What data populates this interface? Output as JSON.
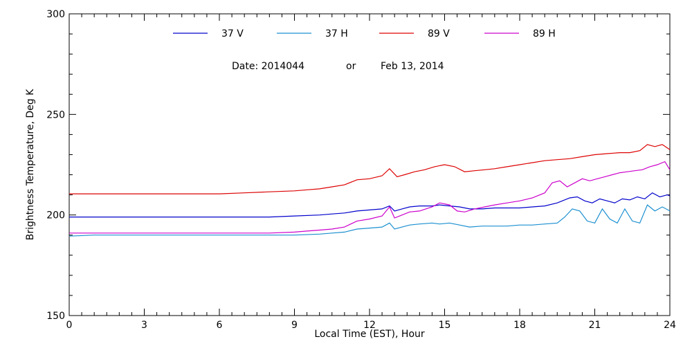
{
  "chart_data": {
    "type": "line",
    "xlabel": "Local Time (EST), Hour",
    "ylabel": "Brightness Temperature, Deg K",
    "xlim": [
      0,
      24
    ],
    "ylim": [
      150,
      300
    ],
    "xticks": [
      0,
      3,
      6,
      9,
      12,
      15,
      18,
      21,
      24
    ],
    "yticks": [
      150,
      200,
      250,
      300
    ],
    "grid": false,
    "legend_position": "top",
    "annotation": {
      "date_label": "Date: 2014044",
      "or_label": "or",
      "date_text": "Feb 13, 2014"
    },
    "series": [
      {
        "name": "37 V",
        "color": "#0000cc",
        "x": [
          0,
          1,
          2,
          3,
          4,
          5,
          6,
          7,
          8,
          9,
          10,
          10.5,
          11,
          11.5,
          12,
          12.5,
          12.8,
          13.0,
          13.3,
          13.6,
          14,
          14.5,
          14.8,
          15.2,
          15.6,
          16,
          16.5,
          17,
          17.5,
          18,
          18.5,
          19,
          19.5,
          20,
          20.3,
          20.6,
          20.9,
          21.2,
          21.5,
          21.8,
          22.1,
          22.4,
          22.7,
          23.0,
          23.3,
          23.6,
          23.9,
          24
        ],
        "values": [
          199,
          199,
          199,
          199,
          199,
          199,
          199,
          199,
          199,
          199.5,
          200,
          200.5,
          201,
          202,
          202.5,
          203,
          204.5,
          202,
          203,
          204,
          204.5,
          204.5,
          205,
          204.5,
          204,
          203,
          203,
          203.5,
          203.5,
          203.5,
          204,
          204.5,
          206,
          208.5,
          209,
          207,
          206,
          208,
          207,
          206,
          208,
          207.5,
          209,
          208,
          211,
          209,
          210,
          209.5
        ]
      },
      {
        "name": "37 H",
        "color": "#1a8fd0",
        "x": [
          0,
          1,
          2,
          3,
          4,
          5,
          6,
          7,
          8,
          9,
          10,
          10.5,
          11,
          11.5,
          12,
          12.5,
          12.8,
          13.0,
          13.3,
          13.6,
          14,
          14.5,
          14.8,
          15.2,
          15.6,
          16,
          16.5,
          17,
          17.5,
          18,
          18.5,
          19,
          19.5,
          19.8,
          20.1,
          20.4,
          20.7,
          21.0,
          21.3,
          21.6,
          21.9,
          22.2,
          22.5,
          22.8,
          23.1,
          23.4,
          23.7,
          24
        ],
        "values": [
          189.5,
          190,
          190,
          190,
          190,
          190,
          190,
          190,
          190,
          190,
          190.5,
          191,
          191.5,
          193,
          193.5,
          194,
          196,
          193,
          194,
          195,
          195.5,
          196,
          195.5,
          196,
          195,
          194,
          194.5,
          194.5,
          194.5,
          195,
          195,
          195.5,
          196,
          199,
          203,
          202,
          197,
          196,
          203,
          198,
          196,
          203,
          197,
          196,
          205,
          202,
          204,
          202
        ]
      },
      {
        "name": "89 V",
        "color": "#dd0000",
        "x": [
          0,
          1,
          2,
          3,
          4,
          5,
          6,
          7,
          8,
          9,
          9.5,
          10,
          10.5,
          11,
          11.5,
          12,
          12.5,
          12.8,
          13.1,
          13.4,
          13.8,
          14.2,
          14.6,
          15.0,
          15.4,
          15.8,
          16.2,
          16.6,
          17,
          17.5,
          18,
          18.5,
          19,
          19.5,
          20,
          20.5,
          21,
          21.5,
          22,
          22.4,
          22.8,
          23.1,
          23.4,
          23.7,
          24
        ],
        "values": [
          210.5,
          210.5,
          210.5,
          210.5,
          210.5,
          210.5,
          210.5,
          211,
          211.5,
          212,
          212.5,
          213,
          214,
          215,
          217.5,
          218,
          219.5,
          223,
          219,
          220,
          221.5,
          222.5,
          224,
          225,
          224,
          221.5,
          222,
          222.5,
          223,
          224,
          225,
          226,
          227,
          227.5,
          228,
          229,
          230,
          230.5,
          231,
          231,
          232,
          235,
          234,
          235,
          232.5
        ]
      },
      {
        "name": "89 H",
        "color": "#cc00cc",
        "x": [
          0,
          1,
          2,
          3,
          4,
          5,
          6,
          7,
          8,
          9,
          9.5,
          10,
          10.5,
          11,
          11.5,
          12,
          12.5,
          12.8,
          13.0,
          13.3,
          13.6,
          14,
          14.5,
          14.8,
          15.2,
          15.5,
          15.8,
          16.2,
          16.6,
          17,
          17.5,
          18,
          18.5,
          19,
          19.3,
          19.6,
          19.9,
          20.2,
          20.5,
          20.8,
          21.1,
          21.4,
          21.7,
          22,
          22.3,
          22.6,
          22.9,
          23.2,
          23.5,
          23.8,
          24
        ],
        "values": [
          191,
          191,
          191,
          191,
          191,
          191,
          191,
          191,
          191,
          191.5,
          192,
          192.5,
          193,
          194,
          197,
          198,
          199.5,
          204,
          198.5,
          200,
          201.5,
          202,
          204,
          206,
          205,
          202,
          201.5,
          203,
          204,
          205,
          206,
          207,
          208.5,
          211,
          216,
          217,
          214,
          216,
          218,
          217,
          218,
          219,
          220,
          221,
          221.5,
          222,
          222.5,
          224,
          225,
          226.5,
          222.5
        ]
      }
    ]
  }
}
